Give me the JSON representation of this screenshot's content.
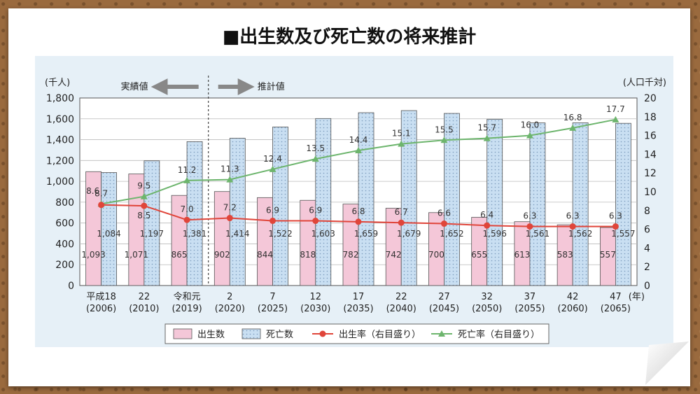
{
  "page_title": "■出生数及び死亡数の将来推計",
  "chart_data": {
    "type": "bar",
    "categories": [
      {
        "label": "平成18",
        "year": "(2006)"
      },
      {
        "label": "22",
        "year": "(2010)"
      },
      {
        "label": "令和元",
        "year": "(2019)"
      },
      {
        "label": "2",
        "year": "(2020)"
      },
      {
        "label": "7",
        "year": "(2025)"
      },
      {
        "label": "12",
        "year": "(2030)"
      },
      {
        "label": "17",
        "year": "(2035)"
      },
      {
        "label": "22",
        "year": "(2040)"
      },
      {
        "label": "27",
        "year": "(2045)"
      },
      {
        "label": "32",
        "year": "(2050)"
      },
      {
        "label": "37",
        "year": "(2055)"
      },
      {
        "label": "42",
        "year": "(2060)"
      },
      {
        "label": "47",
        "year": "(2065)"
      }
    ],
    "x_unit": "(年)",
    "y_left": {
      "unit": "(千人)",
      "min": 0,
      "max": 1800,
      "step": 200
    },
    "y_right": {
      "unit": "(人口千対)",
      "min": 0,
      "max": 20,
      "step": 2
    },
    "annotations": {
      "actual": "実績値",
      "projected": "推計値"
    },
    "series": [
      {
        "name": "出生数",
        "kind": "bar",
        "color": "#f4c7d8",
        "values": [
          1093,
          1071,
          865,
          902,
          844,
          818,
          782,
          742,
          700,
          655,
          613,
          583,
          557
        ],
        "labels": [
          "1,093",
          "1,071",
          "865",
          "902",
          "844",
          "818",
          "782",
          "742",
          "700",
          "655",
          "613",
          "583",
          "557"
        ]
      },
      {
        "name": "死亡数",
        "kind": "bar",
        "color": "#c9dff2",
        "values": [
          1084,
          1197,
          1381,
          1414,
          1522,
          1603,
          1659,
          1679,
          1652,
          1596,
          1561,
          1562,
          1557
        ],
        "labels": [
          "1,084",
          "1,197",
          "1,381",
          "1,414",
          "1,522",
          "1,603",
          "1,659",
          "1,679",
          "1,652",
          "1,596",
          "1,561",
          "1,562",
          "1,557"
        ]
      },
      {
        "name": "出生率（右目盛り）",
        "kind": "line",
        "color": "#e0453a",
        "marker": "circle",
        "values": [
          8.6,
          8.5,
          7.0,
          7.2,
          6.9,
          6.9,
          6.8,
          6.7,
          6.6,
          6.4,
          6.3,
          6.3,
          6.3
        ],
        "labels": [
          "8.6",
          "8.5",
          "7.0",
          "7.2",
          "6.9",
          "6.9",
          "6.8",
          "6.7",
          "6.6",
          "6.4",
          "6.3",
          "6.3",
          "6.3"
        ]
      },
      {
        "name": "死亡率（右目盛り）",
        "kind": "line",
        "color": "#6db56d",
        "marker": "triangle",
        "values": [
          8.7,
          9.5,
          11.2,
          11.3,
          12.4,
          13.5,
          14.4,
          15.1,
          15.5,
          15.7,
          16.0,
          16.8,
          17.7
        ],
        "labels": [
          "8.7",
          "9.5",
          "11.2",
          "11.3",
          "12.4",
          "13.5",
          "14.4",
          "15.1",
          "15.5",
          "15.7",
          "16.0",
          "16.8",
          "17.7"
        ]
      }
    ],
    "grid": true
  }
}
